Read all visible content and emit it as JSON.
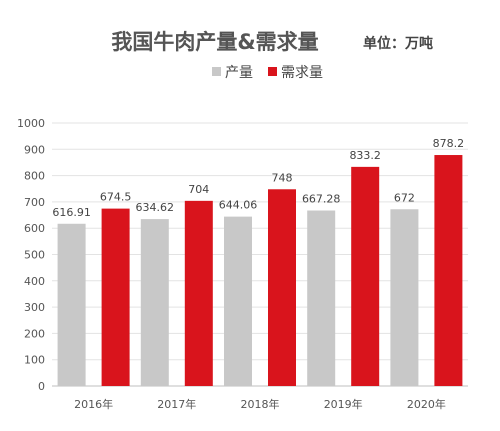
{
  "chart_data": {
    "type": "bar",
    "title": "我国牛肉产量&需求量",
    "unit": "单位：万吨",
    "categories": [
      "2016年",
      "2017年",
      "2018年",
      "2019年",
      "2020年"
    ],
    "series": [
      {
        "name": "产量",
        "color": "#c8c8c8",
        "values": [
          616.91,
          634.62,
          644.06,
          667.28,
          672
        ]
      },
      {
        "name": "需求量",
        "color": "#d9141c",
        "values": [
          674.5,
          704,
          748,
          833.2,
          878.2
        ]
      }
    ],
    "ylim": [
      0,
      1000
    ],
    "yticks": [
      0,
      100,
      200,
      300,
      400,
      500,
      600,
      700,
      800,
      900,
      1000
    ],
    "xlabel": "",
    "ylabel": "",
    "grid": true,
    "legend": "top-left"
  }
}
